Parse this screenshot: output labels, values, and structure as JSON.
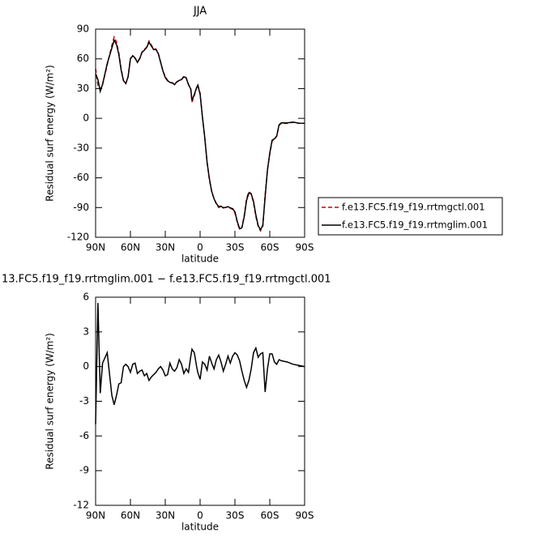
{
  "chart_data": [
    {
      "type": "line",
      "title": "JJA",
      "xlabel": "latitude",
      "ylabel": "Residual surf energy (W/m²)",
      "x": [
        90,
        88,
        86,
        84,
        80,
        76,
        74,
        72,
        70,
        68,
        66,
        64,
        62,
        60,
        58,
        56,
        54,
        52,
        50,
        48,
        46,
        44,
        42,
        40,
        38,
        36,
        34,
        32,
        30,
        28,
        26,
        24,
        22,
        20,
        18,
        16,
        14,
        12,
        10,
        8,
        7,
        5,
        3,
        2,
        0,
        -2,
        -4,
        -6,
        -8,
        -10,
        -12,
        -14,
        -16,
        -18,
        -20,
        -22,
        -24,
        -26,
        -28,
        -30,
        -32,
        -34,
        -36,
        -38,
        -40,
        -42,
        -44,
        -46,
        -48,
        -50,
        -52,
        -54,
        -56,
        -58,
        -60,
        -62,
        -64,
        -66,
        -68,
        -70,
        -75,
        -80,
        -85,
        -90
      ],
      "series": [
        {
          "name": "f.e13.FC5.f19_f19.rrtmgctl.001",
          "color": "#cc0000",
          "line_style": "dashed",
          "values": [
            50,
            33.6,
            29.5,
            34,
            54,
            73.6,
            82,
            77,
            66,
            50,
            38,
            35,
            42,
            60.6,
            63,
            60.6,
            57,
            60.6,
            67,
            69.6,
            72,
            78,
            74,
            70,
            70,
            65.5,
            56.5,
            48,
            42,
            38.5,
            36,
            36,
            34.4,
            37,
            37.7,
            39,
            42.6,
            41,
            34.4,
            28.7,
            16.4,
            23,
            31,
            34,
            25.4,
            1,
            -19.5,
            -44,
            -62,
            -74,
            -81,
            -86.6,
            -90,
            -89,
            -90,
            -90,
            -90,
            -90.6,
            -92,
            -95.5,
            -105,
            -112,
            -110,
            -98,
            -81,
            -74,
            -76,
            -85,
            -99,
            -109,
            -113.5,
            -109,
            -77,
            -52,
            -36,
            -23,
            -21,
            -18,
            -7,
            -5,
            -5,
            -4,
            -5,
            -5
          ]
        },
        {
          "name": "f.e13.FC5.f19_f19.rrtmglim.001",
          "color": "#000000",
          "line_style": "solid",
          "values": [
            45,
            39.1,
            27.2,
            34.3,
            55.2,
            71.1,
            78.7,
            74.5,
            64.5,
            48.6,
            38,
            35.2,
            42,
            60.1,
            63.2,
            60.9,
            56.4,
            60.2,
            66.7,
            68.8,
            71.4,
            76.8,
            73.1,
            69.3,
            69.5,
            65.3,
            56.5,
            47.7,
            41.2,
            37.8,
            36.3,
            35.8,
            34,
            36.9,
            38.3,
            39.2,
            42,
            40.8,
            33.9,
            29.6,
            17.9,
            24.2,
            31,
            33.5,
            24.3,
            1.4,
            -19.3,
            -44.3,
            -61.1,
            -73.7,
            -81.2,
            -86,
            -89,
            -88.6,
            -90.4,
            -89.8,
            -89.1,
            -90.3,
            -91.1,
            -94.3,
            -104,
            -111.5,
            -110.4,
            -99.2,
            -82.8,
            -75.2,
            -76.2,
            -83.8,
            -97.4,
            -108.2,
            -112.4,
            -107.8,
            -79.2,
            -52.2,
            -34.9,
            -21.9,
            -20.6,
            -17.8,
            -6.4,
            -4.5,
            -4.6,
            -3.8,
            -4.9,
            -5
          ]
        }
      ],
      "xlim": [
        90,
        -90
      ],
      "xticks": [
        {
          "value": 90,
          "label": "90N"
        },
        {
          "value": 60,
          "label": "60N"
        },
        {
          "value": 30,
          "label": "30N"
        },
        0,
        {
          "value": -30,
          "label": "30S"
        },
        {
          "value": -60,
          "label": "60S"
        },
        {
          "value": -90,
          "label": "90S"
        }
      ],
      "ylim": [
        -120,
        90
      ],
      "yticks": [
        90,
        60,
        30,
        0,
        -30,
        -60,
        -90,
        -120
      ],
      "legend": "right"
    },
    {
      "type": "line",
      "title": "13.FC5.f19_f19.rrtmglim.001 − f.e13.FC5.f19_f19.rrtmgctl.001",
      "xlabel": "latitude",
      "ylabel": "Residual surf energy (W/m²)",
      "x": [
        90,
        88,
        86,
        84,
        80,
        76,
        74,
        72,
        70,
        68,
        66,
        64,
        62,
        60,
        58,
        56,
        54,
        52,
        50,
        48,
        46,
        44,
        42,
        40,
        38,
        36,
        34,
        32,
        30,
        28,
        26,
        24,
        22,
        20,
        18,
        16,
        14,
        12,
        10,
        8,
        7,
        5,
        3,
        2,
        0,
        -2,
        -4,
        -6,
        -8,
        -10,
        -12,
        -14,
        -16,
        -18,
        -20,
        -22,
        -24,
        -26,
        -28,
        -30,
        -32,
        -34,
        -36,
        -38,
        -40,
        -42,
        -44,
        -46,
        -48,
        -50,
        -52,
        -54,
        -56,
        -58,
        -60,
        -62,
        -64,
        -66,
        -68,
        -70,
        -75,
        -80,
        -85,
        -90
      ],
      "series": [
        {
          "color": "#000000",
          "line_style": "solid",
          "values": [
            -5,
            5.5,
            -2.3,
            0.3,
            1.2,
            -2.5,
            -3.3,
            -2.5,
            -1.5,
            -1.4,
            0,
            0.2,
            0,
            -0.5,
            0.2,
            0.3,
            -0.6,
            -0.4,
            -0.3,
            -0.8,
            -0.6,
            -1.2,
            -0.9,
            -0.7,
            -0.5,
            -0.2,
            0,
            -0.3,
            -0.8,
            -0.7,
            0.3,
            -0.2,
            -0.4,
            -0.1,
            0.6,
            0.2,
            -0.6,
            -0.2,
            -0.5,
            0.9,
            1.5,
            1.2,
            0,
            -0.5,
            -1.1,
            0.4,
            0.2,
            -0.3,
            0.9,
            0.3,
            -0.2,
            0.6,
            1,
            0.4,
            -0.4,
            0.2,
            0.9,
            0.3,
            0.9,
            1.2,
            1,
            0.5,
            -0.4,
            -1.2,
            -1.8,
            -1.2,
            -0.2,
            1.2,
            1.6,
            0.8,
            1.1,
            1.2,
            -2.2,
            -0.2,
            1.1,
            1.1,
            0.4,
            0.2,
            0.6,
            0.5,
            0.4,
            0.2,
            0.1,
            0
          ]
        }
      ],
      "xlim": [
        90,
        -90
      ],
      "xticks": [
        {
          "value": 90,
          "label": "90N"
        },
        {
          "value": 60,
          "label": "60N"
        },
        {
          "value": 30,
          "label": "30N"
        },
        0,
        {
          "value": -30,
          "label": "30S"
        },
        {
          "value": -60,
          "label": "60S"
        },
        {
          "value": -90,
          "label": "90S"
        }
      ],
      "ylim": [
        -12,
        6
      ],
      "yticks": [
        6,
        3,
        0,
        -3,
        -6,
        -9,
        -12
      ]
    }
  ]
}
